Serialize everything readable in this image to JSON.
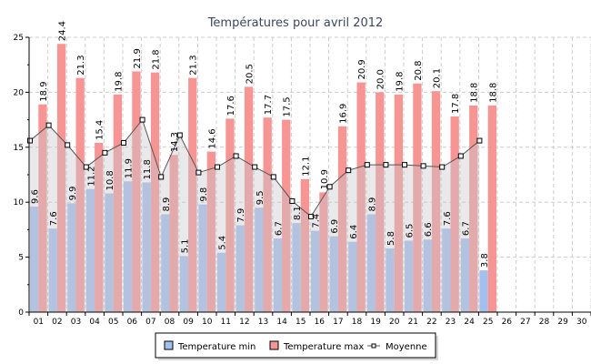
{
  "chart_data": {
    "type": "bar",
    "title": "Températures pour avril 2012",
    "xlabel": "",
    "ylabel": "",
    "ylim": [
      0,
      25
    ],
    "yticks": [
      0,
      5,
      10,
      15,
      20,
      25
    ],
    "grid": true,
    "legend_position": "bottom",
    "categories": [
      "01",
      "02",
      "03",
      "04",
      "05",
      "06",
      "07",
      "08",
      "09",
      "10",
      "11",
      "12",
      "13",
      "14",
      "15",
      "16",
      "17",
      "18",
      "19",
      "20",
      "21",
      "22",
      "23",
      "24",
      "25",
      "26",
      "27",
      "28",
      "29",
      "30"
    ],
    "series": [
      {
        "name": "Temperature min",
        "type": "bar",
        "color": "#a3bfec",
        "values": [
          9.6,
          7.6,
          9.9,
          11.2,
          10.8,
          11.9,
          11.8,
          8.9,
          5.1,
          9.8,
          5.4,
          7.9,
          9.5,
          6.7,
          8.1,
          7.4,
          6.9,
          6.4,
          8.9,
          5.8,
          6.5,
          6.6,
          7.6,
          6.7,
          3.8,
          null,
          null,
          null,
          null,
          null
        ]
      },
      {
        "name": "Temperature max",
        "type": "bar",
        "color": "#f79595",
        "values": [
          18.9,
          24.4,
          21.3,
          15.4,
          19.8,
          21.9,
          21.8,
          14.3,
          21.3,
          14.6,
          17.6,
          20.5,
          17.7,
          17.5,
          12.1,
          10.9,
          16.9,
          20.9,
          20.0,
          19.8,
          20.8,
          20.1,
          17.8,
          18.8,
          18.8,
          null,
          null,
          null,
          null,
          null
        ]
      },
      {
        "name": "Moyenne",
        "type": "area-line",
        "color": "#555555",
        "values": [
          15.6,
          17.0,
          15.2,
          13.2,
          14.5,
          15.4,
          17.5,
          12.3,
          16.1,
          12.7,
          13.2,
          14.2,
          13.2,
          12.3,
          10.1,
          8.7,
          11.4,
          12.9,
          13.4,
          13.4,
          13.4,
          13.3,
          13.2,
          14.2,
          15.6,
          null,
          null,
          null,
          null,
          null
        ]
      }
    ]
  }
}
